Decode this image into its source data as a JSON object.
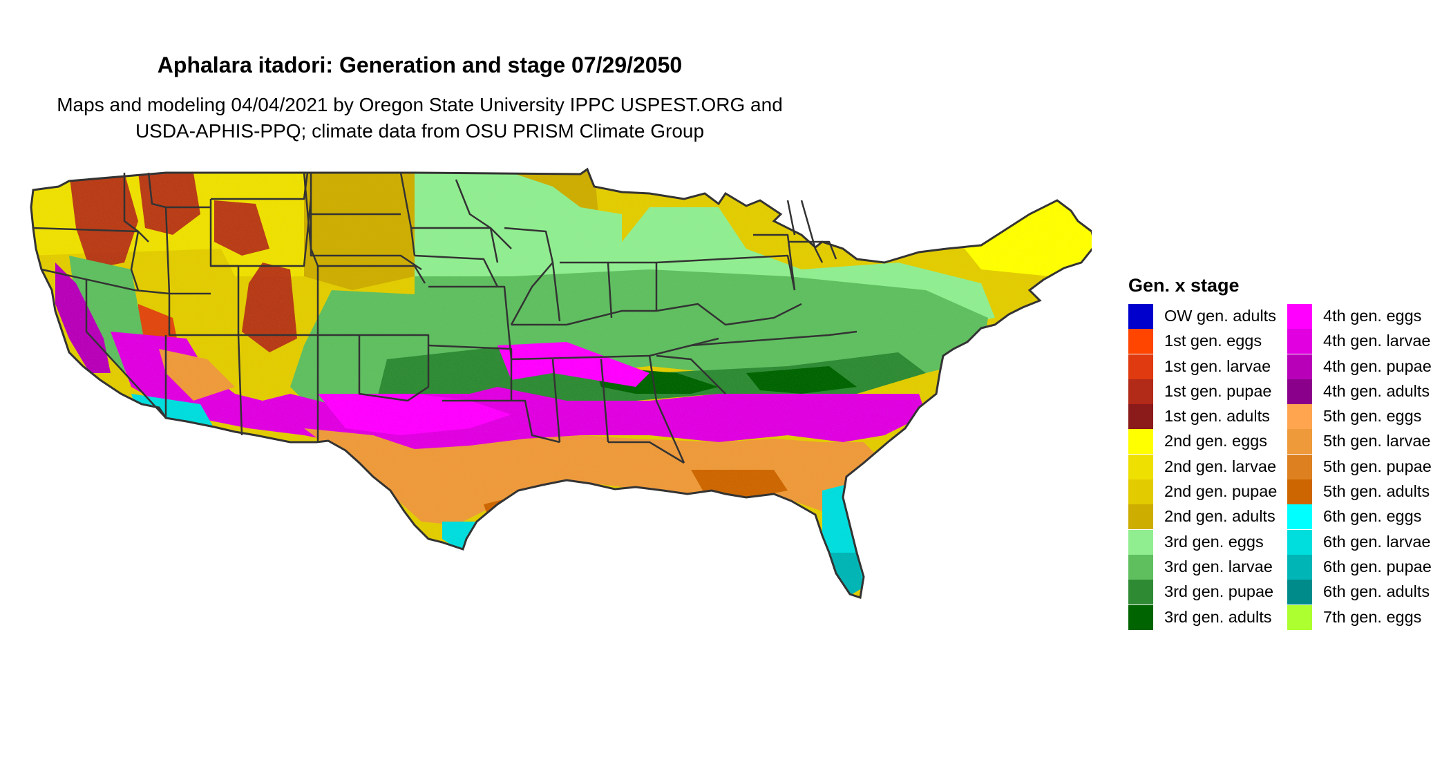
{
  "figure": {
    "title": "Aphalara itadori: Generation and stage 07/29/2050",
    "subtitle_line1": "Maps and modeling 04/04/2021 by Oregon State University IPPC USPEST.ORG and",
    "subtitle_line2": "USDA-APHIS-PPQ; climate data from OSU PRISM Climate Group"
  },
  "legend": {
    "title": "Gen. x stage",
    "items": [
      {
        "label": "OW gen. adults",
        "color": "#0000CD"
      },
      {
        "label": "1st gen. eggs",
        "color": "#FF4500"
      },
      {
        "label": "1st gen. larvae",
        "color": "#E03A10"
      },
      {
        "label": "1st gen. pupae",
        "color": "#B22A18"
      },
      {
        "label": "1st gen. adults",
        "color": "#8B1A1A"
      },
      {
        "label": "2nd gen. eggs",
        "color": "#FFFF00"
      },
      {
        "label": "2nd gen. larvae",
        "color": "#EEE000"
      },
      {
        "label": "2nd gen. pupae",
        "color": "#E2CC00"
      },
      {
        "label": "2nd gen. adults",
        "color": "#CDAD00"
      },
      {
        "label": "3rd gen. eggs",
        "color": "#90EE90"
      },
      {
        "label": "3rd gen. larvae",
        "color": "#5FBF5F"
      },
      {
        "label": "3rd gen. pupae",
        "color": "#2E8B34"
      },
      {
        "label": "3rd gen. adults",
        "color": "#006400"
      },
      {
        "label": "4th gen. eggs",
        "color": "#FF00FF"
      },
      {
        "label": "4th gen. larvae",
        "color": "#E000E0"
      },
      {
        "label": "4th gen. pupae",
        "color": "#B800B8"
      },
      {
        "label": "4th gen. adults",
        "color": "#8B008B"
      },
      {
        "label": "5th gen. eggs",
        "color": "#FFA54F"
      },
      {
        "label": "5th gen. larvae",
        "color": "#EE9A3A"
      },
      {
        "label": "5th gen. pupae",
        "color": "#DD8020"
      },
      {
        "label": "5th gen. adults",
        "color": "#CD6600"
      },
      {
        "label": "6th gen. eggs",
        "color": "#00FFFF"
      },
      {
        "label": "6th gen. larvae",
        "color": "#00DDDD"
      },
      {
        "label": "6th gen. pupae",
        "color": "#00B5B5"
      },
      {
        "label": "6th gen. adults",
        "color": "#008B8B"
      },
      {
        "label": "7th gen. eggs",
        "color": "#ADFF2F"
      }
    ]
  }
}
